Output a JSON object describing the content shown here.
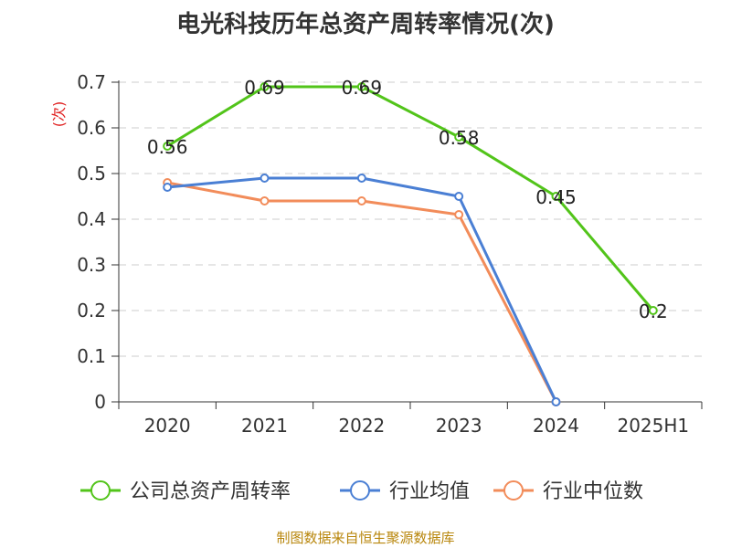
{
  "title": "电光科技历年总资产周转率情况(次)",
  "source": "制图数据来自恒生聚源数据库",
  "chart_data": {
    "type": "line",
    "title": "电光科技历年总资产周转率情况(次)",
    "ylabel": "(次)",
    "xlabel": "",
    "categories": [
      "2020",
      "2021",
      "2022",
      "2023",
      "2024",
      "2025H1"
    ],
    "ylim": [
      0,
      0.7
    ],
    "yticks": [
      "0",
      "0.1",
      "0.2",
      "0.3",
      "0.4",
      "0.5",
      "0.6",
      "0.7"
    ],
    "grid": true,
    "legend_position": "bottom",
    "series": [
      {
        "name": "公司总资产周转率",
        "color": "#52c41a",
        "values": [
          0.56,
          0.69,
          0.69,
          0.58,
          0.45,
          0.2
        ],
        "labels": [
          "0.56",
          "0.69",
          "0.69",
          "0.58",
          "0.45",
          "0.2"
        ]
      },
      {
        "name": "行业均值",
        "color": "#4a7fd4",
        "values": [
          0.47,
          0.49,
          0.49,
          0.45,
          0.0,
          null
        ]
      },
      {
        "name": "行业中位数",
        "color": "#f28c5a",
        "values": [
          0.48,
          0.44,
          0.44,
          0.41,
          0.0,
          null
        ]
      }
    ]
  }
}
